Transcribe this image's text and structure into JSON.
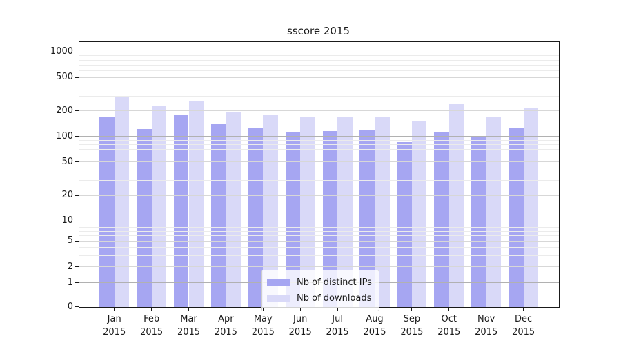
{
  "chart_data": {
    "type": "bar",
    "title": "sscore 2015",
    "categories": [
      "Jan",
      "Feb",
      "Mar",
      "Apr",
      "May",
      "Jun",
      "Jul",
      "Aug",
      "Sep",
      "Oct",
      "Nov",
      "Dec"
    ],
    "x_year": "2015",
    "series": [
      {
        "name": "Nb of distinct IPs",
        "color": "#a6a6f2",
        "values": [
          170,
          122,
          179,
          143,
          128,
          112,
          116,
          121,
          85,
          112,
          102,
          126
        ]
      },
      {
        "name": "Nb of downloads",
        "color": "#d9d9f8",
        "values": [
          300,
          232,
          258,
          196,
          183,
          167,
          172,
          170,
          152,
          241,
          173,
          221
        ]
      }
    ],
    "yticks": [
      1000,
      500,
      200,
      100,
      50,
      20,
      10,
      5,
      2,
      1,
      0
    ],
    "yscale": "symlog",
    "ylim": [
      0,
      1300
    ],
    "grid": true,
    "legend_position": "lower center"
  }
}
